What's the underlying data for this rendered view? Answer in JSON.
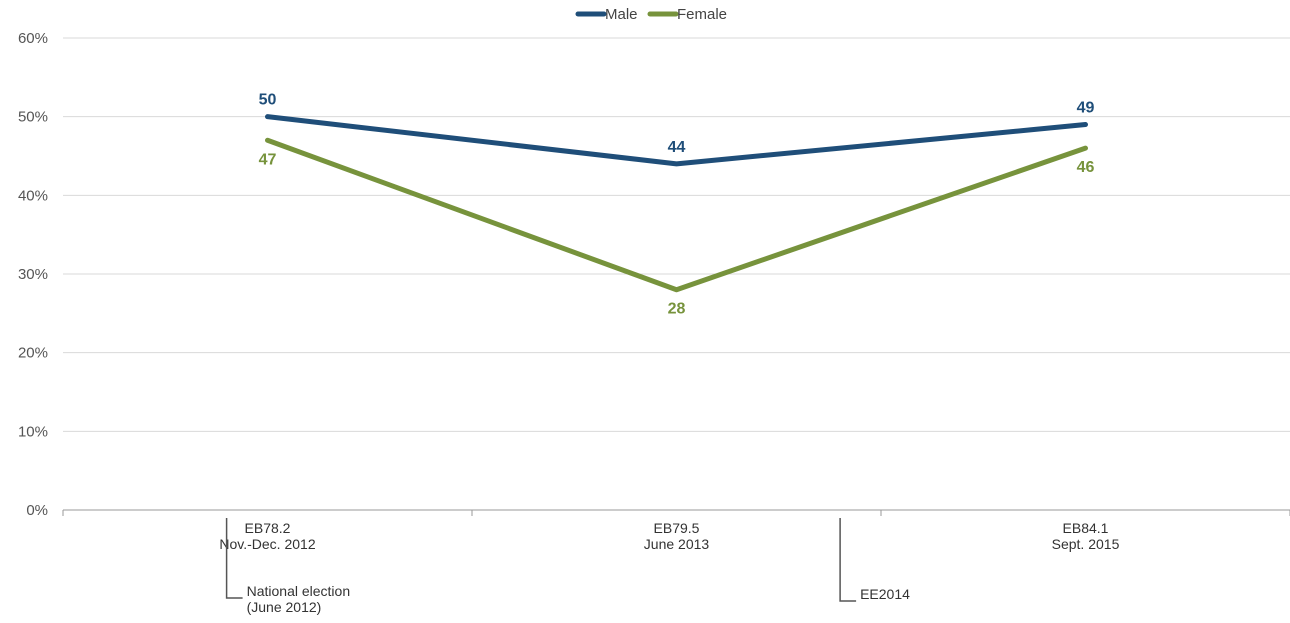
{
  "chart_data": {
    "type": "line",
    "categories": [
      [
        "EB78.2",
        "Nov.-Dec. 2012"
      ],
      [
        "EB79.5",
        "June 2013"
      ],
      [
        "EB84.1",
        "Sept. 2015"
      ]
    ],
    "series": [
      {
        "name": "Male",
        "values": [
          50,
          44,
          49
        ],
        "color": "#1f4e79",
        "label_position": "above"
      },
      {
        "name": "Female",
        "values": [
          47,
          28,
          46
        ],
        "color": "#77933c",
        "label_position": "below"
      }
    ],
    "y_ticks": [
      "0%",
      "10%",
      "20%",
      "30%",
      "40%",
      "50%",
      "60%"
    ],
    "ylim": [
      0,
      60
    ],
    "grid": true,
    "legend_position": "top-center",
    "annotations": [
      {
        "lines": [
          "National election",
          "(June 2012)"
        ],
        "at_x": 0.4
      },
      {
        "lines": [
          "EE2014"
        ],
        "at_x": 1.9
      }
    ]
  }
}
